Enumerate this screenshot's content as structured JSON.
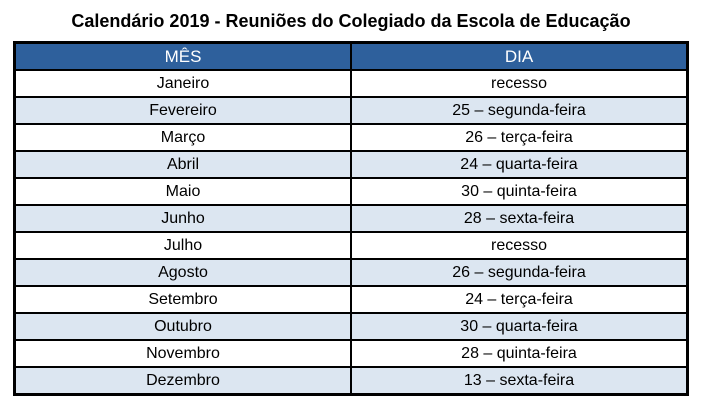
{
  "title": "Calendário 2019 - Reuniões do Colegiado da Escola de Educação",
  "colors": {
    "header_bg": "#2E609C",
    "header_text": "#FFFFFF",
    "row_alt_bg": "#DCE6F1",
    "border": "#000000"
  },
  "table": {
    "columns": [
      "MÊS",
      "DIA"
    ],
    "rows": [
      {
        "mes": "Janeiro",
        "dia": "recesso"
      },
      {
        "mes": "Fevereiro",
        "dia": "25 – segunda-feira"
      },
      {
        "mes": "Março",
        "dia": "26 – terça-feira"
      },
      {
        "mes": "Abril",
        "dia": "24 – quarta-feira"
      },
      {
        "mes": "Maio",
        "dia": "30 – quinta-feira"
      },
      {
        "mes": "Junho",
        "dia": "28 – sexta-feira"
      },
      {
        "mes": "Julho",
        "dia": "recesso"
      },
      {
        "mes": "Agosto",
        "dia": "26 – segunda-feira"
      },
      {
        "mes": "Setembro",
        "dia": "24 – terça-feira"
      },
      {
        "mes": "Outubro",
        "dia": "30 – quarta-feira"
      },
      {
        "mes": "Novembro",
        "dia": "28 – quinta-feira"
      },
      {
        "mes": "Dezembro",
        "dia": "13 – sexta-feira"
      }
    ]
  }
}
